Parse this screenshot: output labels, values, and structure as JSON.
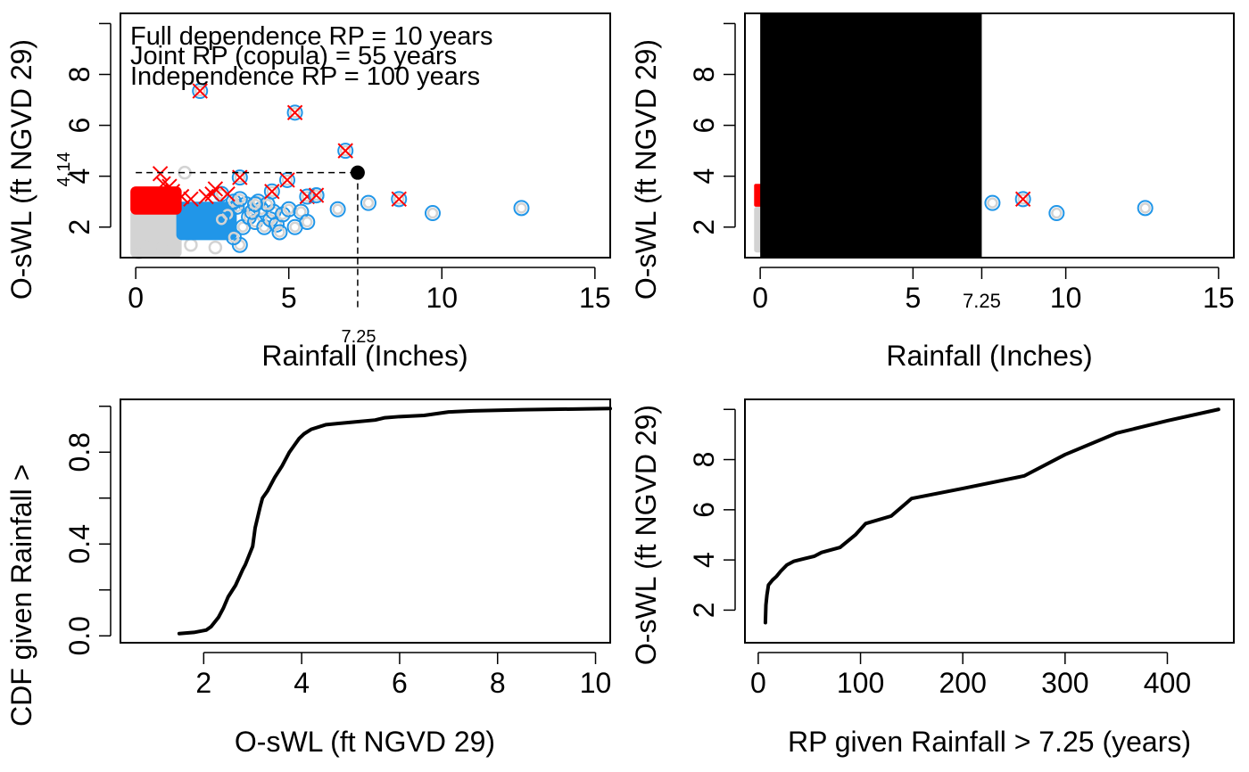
{
  "colors": {
    "grey": "#d3d3d3",
    "blue": "#2196e8",
    "red": "#ff0000",
    "black": "#000000"
  },
  "chart_data": [
    {
      "id": "top-left",
      "type": "scatter",
      "title": "",
      "xlabel": "Rainfall (Inches)",
      "ylabel": "O-sWL (ft NGVD 29)",
      "xlim": [
        -0.5,
        15.5
      ],
      "ylim": [
        0.8,
        10.4
      ],
      "xticks": [
        0,
        5,
        10,
        15
      ],
      "yticks": [
        2,
        4,
        6,
        8,
        10
      ],
      "ytick_labels": [
        "2",
        "4",
        "6",
        "8",
        ""
      ],
      "grid": false,
      "annotations": [
        "Full dependence RP = 10 years",
        "Joint RP (copula) = 55 years",
        "Independence RP = 100 years"
      ],
      "threshold": {
        "x": 7.25,
        "y": 4.14,
        "x_label": "7.25",
        "y_label": "4.14"
      },
      "grey_block": {
        "x": [
          0,
          1.5
        ],
        "y": [
          1.0,
          2.7
        ]
      },
      "red_block": {
        "x": [
          0,
          1.5
        ],
        "y": [
          2.7,
          3.6
        ]
      },
      "blue_block": {
        "x": [
          1.5,
          3.3
        ],
        "y": [
          1.7,
          3.0
        ]
      },
      "grey_points": [
        [
          0.2,
          1.1
        ],
        [
          0.5,
          1.3
        ],
        [
          0.9,
          1.2
        ],
        [
          1.8,
          1.3
        ],
        [
          2.6,
          1.2
        ],
        [
          1.6,
          4.14
        ],
        [
          0.1,
          1.0
        ]
      ],
      "blue_points": [
        [
          3.4,
          1.3
        ],
        [
          3.2,
          1.6
        ],
        [
          3.5,
          2.0
        ],
        [
          3.7,
          2.4
        ],
        [
          3.9,
          2.2
        ],
        [
          4.1,
          2.7
        ],
        [
          4.2,
          2.0
        ],
        [
          4.4,
          2.3
        ],
        [
          4.5,
          2.6
        ],
        [
          4.6,
          2.1
        ],
        [
          4.7,
          1.8
        ],
        [
          4.8,
          2.5
        ],
        [
          5.0,
          2.7
        ],
        [
          5.2,
          2.0
        ],
        [
          5.4,
          2.6
        ],
        [
          5.6,
          2.2
        ],
        [
          3.6,
          2.9
        ],
        [
          3.8,
          2.6
        ],
        [
          4.0,
          3.0
        ],
        [
          3.3,
          2.8
        ],
        [
          3.0,
          2.5
        ],
        [
          2.8,
          2.3
        ],
        [
          3.2,
          3.0
        ],
        [
          4.3,
          2.9
        ],
        [
          6.6,
          2.7
        ],
        [
          7.6,
          2.95
        ],
        [
          9.7,
          2.55
        ],
        [
          12.6,
          2.75
        ],
        [
          5.9,
          3.25
        ],
        [
          3.4,
          3.1
        ],
        [
          2.8,
          3.3
        ],
        [
          3.9,
          2.9
        ]
      ],
      "red_x_points": [
        [
          0.8,
          4.1
        ],
        [
          0.9,
          3.7
        ],
        [
          1.2,
          3.4
        ],
        [
          1.5,
          3.2
        ],
        [
          1.8,
          3.1
        ],
        [
          2.3,
          3.2
        ],
        [
          2.6,
          3.5
        ],
        [
          3.0,
          3.3
        ],
        [
          2.5,
          3.3
        ],
        [
          1.1,
          3.6
        ]
      ],
      "extreme_points": [
        [
          2.1,
          7.35
        ],
        [
          5.2,
          6.5
        ],
        [
          6.85,
          5.0
        ],
        [
          3.4,
          3.95
        ],
        [
          4.95,
          3.85
        ],
        [
          4.45,
          3.4
        ],
        [
          5.6,
          3.2
        ],
        [
          5.9,
          3.25
        ],
        [
          8.6,
          3.1
        ]
      ]
    },
    {
      "id": "top-right",
      "type": "scatter",
      "xlabel": "Rainfall (Inches)",
      "ylabel": "O-sWL (ft NGVD 29)",
      "xlim": [
        -0.5,
        15.5
      ],
      "ylim": [
        0.8,
        10.4
      ],
      "xticks": [
        0,
        5,
        7.25,
        10,
        15
      ],
      "xtick_labels": [
        "0",
        "5",
        "7.25",
        "10",
        "15"
      ],
      "yticks": [
        2,
        4,
        6,
        8,
        10
      ],
      "ytick_labels": [
        "2",
        "4",
        "6",
        "8",
        ""
      ],
      "grid": false,
      "masked_region": {
        "x": [
          0,
          7.25
        ]
      },
      "grey_strip": {
        "x": [
          -0.2,
          0
        ],
        "y": [
          1.0,
          2.8
        ]
      },
      "red_strip": {
        "x": [
          -0.2,
          0
        ],
        "y": [
          2.8,
          3.7
        ]
      },
      "blue_points": [
        [
          7.6,
          2.95
        ],
        [
          9.7,
          2.55
        ],
        [
          12.6,
          2.75
        ]
      ],
      "extreme_points": [
        [
          8.6,
          3.1
        ]
      ]
    },
    {
      "id": "bottom-left",
      "type": "line",
      "xlabel": "O-sWL (ft NGVD 29)",
      "ylabel": "CDF given Rainfall >",
      "xlim": [
        0.3,
        10.3
      ],
      "ylim": [
        -0.03,
        1.03
      ],
      "xticks": [
        2,
        4,
        6,
        8,
        10
      ],
      "yticks": [
        0.0,
        0.2,
        0.4,
        0.6,
        0.8,
        1.0
      ],
      "ytick_labels": [
        "0.0",
        "",
        "0.4",
        "",
        "0.8",
        ""
      ],
      "grid": false,
      "series": [
        {
          "name": "CDF",
          "x": [
            1.5,
            1.8,
            2.05,
            2.15,
            2.3,
            2.4,
            2.5,
            2.65,
            2.8,
            2.85,
            3.0,
            3.05,
            3.15,
            3.2,
            3.3,
            3.45,
            3.6,
            3.75,
            3.85,
            3.95,
            4.05,
            4.2,
            4.5,
            5.0,
            5.5,
            5.7,
            6.0,
            6.5,
            7.0,
            7.5,
            8.5,
            10.3
          ],
          "y": [
            0.01,
            0.015,
            0.025,
            0.04,
            0.08,
            0.12,
            0.17,
            0.22,
            0.29,
            0.31,
            0.39,
            0.47,
            0.56,
            0.6,
            0.63,
            0.69,
            0.74,
            0.8,
            0.83,
            0.86,
            0.88,
            0.9,
            0.92,
            0.93,
            0.94,
            0.95,
            0.955,
            0.96,
            0.975,
            0.98,
            0.985,
            0.99
          ]
        }
      ]
    },
    {
      "id": "bottom-right",
      "type": "line",
      "xlabel": "RP given Rainfall > 7.25 (years)",
      "ylabel": "O-sWL (ft NGVD 29)",
      "xlim": [
        -13,
        465
      ],
      "ylim": [
        0.7,
        10.4
      ],
      "xticks": [
        0,
        100,
        200,
        300,
        400
      ],
      "yticks": [
        2,
        4,
        6,
        8,
        10
      ],
      "ytick_labels": [
        "2",
        "4",
        "6",
        "8",
        ""
      ],
      "grid": false,
      "series": [
        {
          "name": "RP curve",
          "x": [
            7,
            7.5,
            8.5,
            10,
            14,
            18,
            22,
            28,
            35,
            45,
            55,
            62,
            80,
            95,
            105,
            130,
            150,
            200,
            260,
            300,
            350,
            400,
            450
          ],
          "y": [
            1.5,
            2.2,
            2.6,
            3.0,
            3.2,
            3.35,
            3.55,
            3.8,
            3.95,
            4.05,
            4.15,
            4.3,
            4.5,
            5.0,
            5.45,
            5.75,
            6.45,
            6.85,
            7.35,
            8.2,
            9.05,
            9.55,
            10.0
          ]
        }
      ]
    }
  ]
}
